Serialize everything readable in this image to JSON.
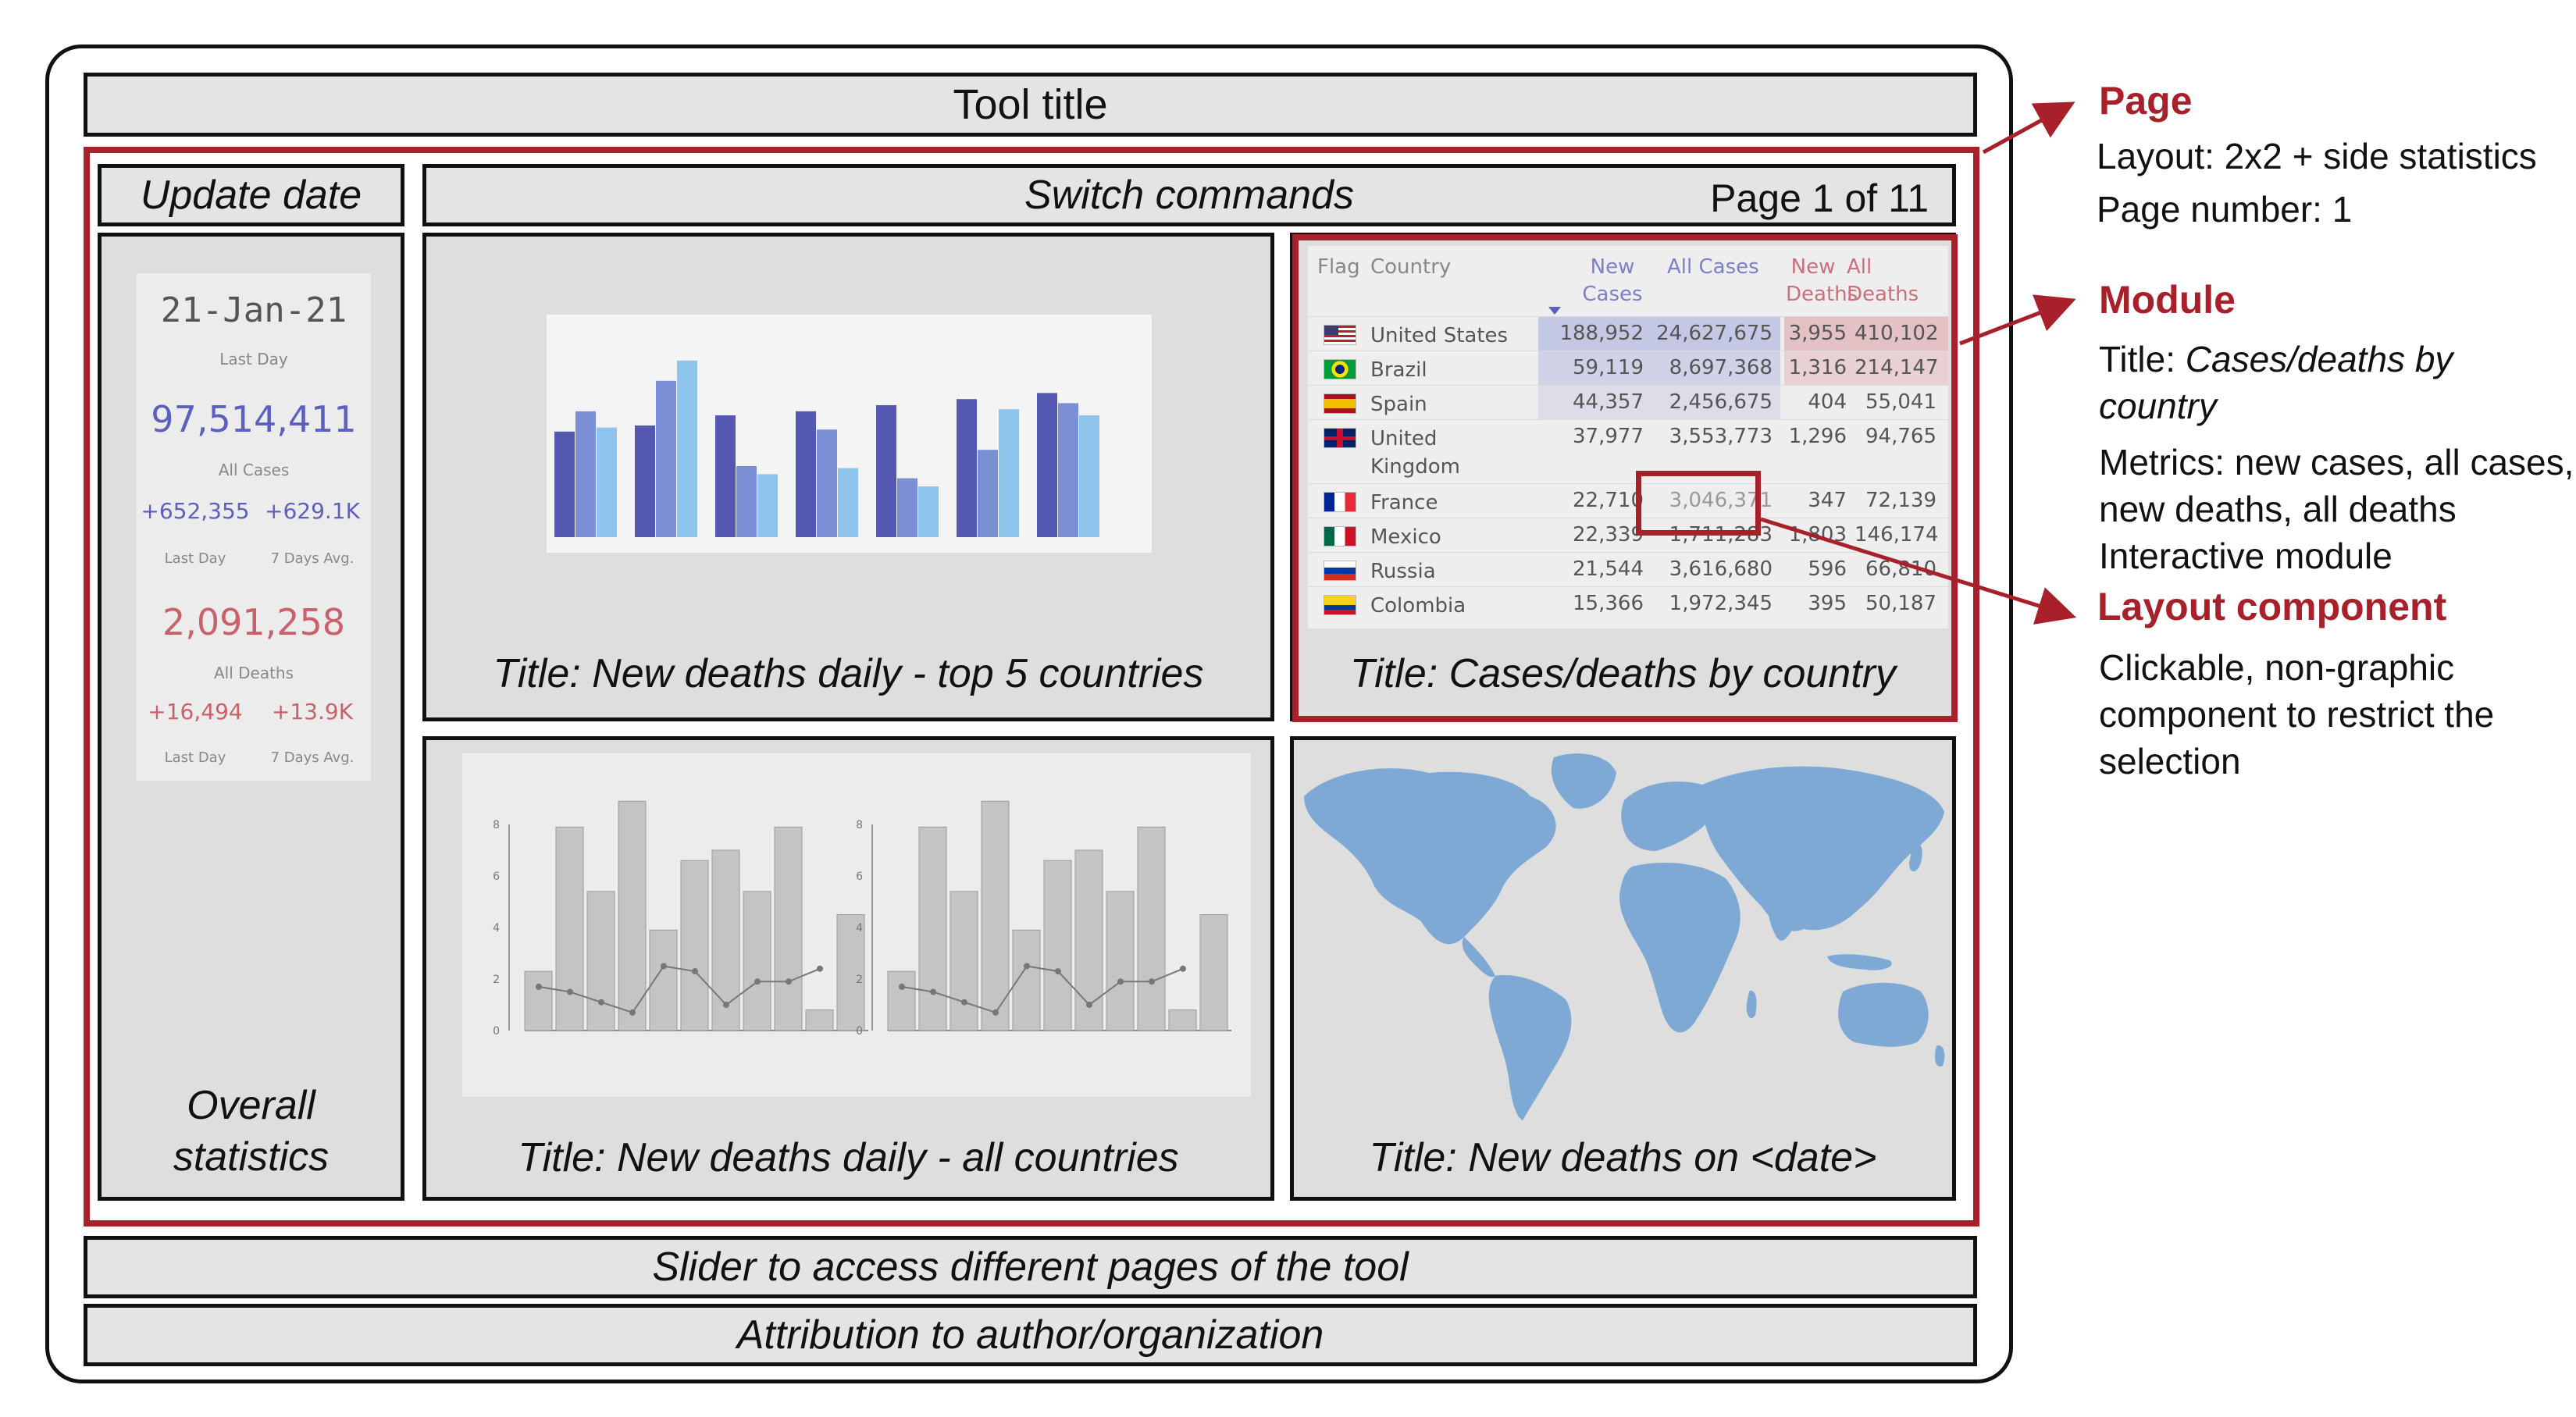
{
  "tool_title": "Tool title",
  "update_date_label": "Update date",
  "switch_commands_label": "Switch commands",
  "page_indicator": "Page 1 of 11",
  "overall_statistics_label": [
    "Overall",
    "statistics"
  ],
  "slider_label": "Slider to access different pages of the tool",
  "attribution_label": "Attribution to author/organization",
  "stats": {
    "date": "21-Jan-21",
    "last_day_label": "Last Day",
    "all_cases_value": "97,514,411",
    "all_cases_label": "All Cases",
    "cases_last_day": "+652,355",
    "cases_7day": "+629.1K",
    "seven_day_label": "7 Days Avg.",
    "all_deaths_value": "2,091,258",
    "all_deaths_label": "All Deaths",
    "deaths_last_day": "+16,494",
    "deaths_7day": "+13.9K"
  },
  "panels": {
    "top_left_title": "Title: New deaths daily - top 5 countries",
    "top_right_title": "Title: Cases/deaths by country",
    "bottom_left_title": "Title: New deaths daily - all countries",
    "bottom_right_title": "Title: New deaths on <date>"
  },
  "colors": {
    "accent_red": "#a7202a",
    "bar_dark": "#5558b0",
    "bar_mid": "#7b8fd4",
    "bar_light": "#8ec3eb",
    "map_blue": "#7ea9d4"
  },
  "bar_chart": {
    "groups": 7,
    "series": [
      {
        "values": [
          0.52,
          0.55,
          0.6,
          0.62,
          0.65,
          0.68,
          0.71
        ]
      },
      {
        "values": [
          0.62,
          0.77,
          0.35,
          0.53,
          0.29,
          0.43,
          0.66
        ]
      },
      {
        "values": [
          0.54,
          0.87,
          0.31,
          0.34,
          0.25,
          0.63,
          0.6
        ]
      }
    ]
  },
  "small_charts": {
    "y_ticks": [
      "0",
      "2",
      "4",
      "6",
      "8"
    ],
    "bars": [
      2.3,
      7.9,
      5.4,
      8.9,
      3.9,
      6.6,
      7.0,
      5.4,
      7.9,
      0.8,
      4.5
    ],
    "line": [
      1.7,
      1.5,
      1.1,
      0.7,
      2.5,
      2.3,
      1.0,
      1.9,
      1.9,
      2.4
    ]
  },
  "table": {
    "headers": {
      "flag": "Flag",
      "country": "Country",
      "new_cases": [
        "New",
        "Cases"
      ],
      "all_cases": "All Cases",
      "new_deaths": [
        "New",
        "Deaths"
      ],
      "all_deaths": "All Deaths"
    },
    "rows": [
      {
        "country": [
          "United States"
        ],
        "new_cases": "188,952",
        "all_cases": "24,627,675",
        "new_deaths": "3,955",
        "all_deaths": "410,102",
        "flag": "us"
      },
      {
        "country": [
          "Brazil"
        ],
        "new_cases": "59,119",
        "all_cases": "8,697,368",
        "new_deaths": "1,316",
        "all_deaths": "214,147",
        "flag": "br"
      },
      {
        "country": [
          "Spain"
        ],
        "new_cases": "44,357",
        "all_cases": "2,456,675",
        "new_deaths": "404",
        "all_deaths": "55,041",
        "flag": "es"
      },
      {
        "country": [
          "United",
          "Kingdom"
        ],
        "new_cases": "37,977",
        "all_cases": "3,553,773",
        "new_deaths": "1,296",
        "all_deaths": "94,765",
        "flag": "uk"
      },
      {
        "country": [
          "France"
        ],
        "new_cases": "22,710",
        "all_cases": "3,046,371",
        "new_deaths": "347",
        "all_deaths": "72,139",
        "flag": "fr"
      },
      {
        "country": [
          "Mexico"
        ],
        "new_cases": "22,339",
        "all_cases": "1,711,283",
        "new_deaths": "1,803",
        "all_deaths": "146,174",
        "flag": "mx"
      },
      {
        "country": [
          "Russia"
        ],
        "new_cases": "21,544",
        "all_cases": "3,616,680",
        "new_deaths": "596",
        "all_deaths": "66,810",
        "flag": "ru"
      },
      {
        "country": [
          "Colombia"
        ],
        "new_cases": "15,366",
        "all_cases": "1,972,345",
        "new_deaths": "395",
        "all_deaths": "50,187",
        "flag": "co"
      }
    ]
  },
  "annotations": {
    "page": {
      "heading": "Page",
      "lines": [
        "Layout: 2x2 + side statistics",
        "Page number: 1"
      ]
    },
    "module": {
      "heading": "Module",
      "title_prefix": "Title: ",
      "title_value": "Cases/deaths by country",
      "lines": [
        "Metrics: new cases, all cases,",
        "new deaths, all deaths",
        "Interactive module"
      ]
    },
    "layout_component": {
      "heading": "Layout component",
      "lines": [
        "Clickable, non-graphic",
        "component to restrict the",
        "selection"
      ]
    }
  }
}
